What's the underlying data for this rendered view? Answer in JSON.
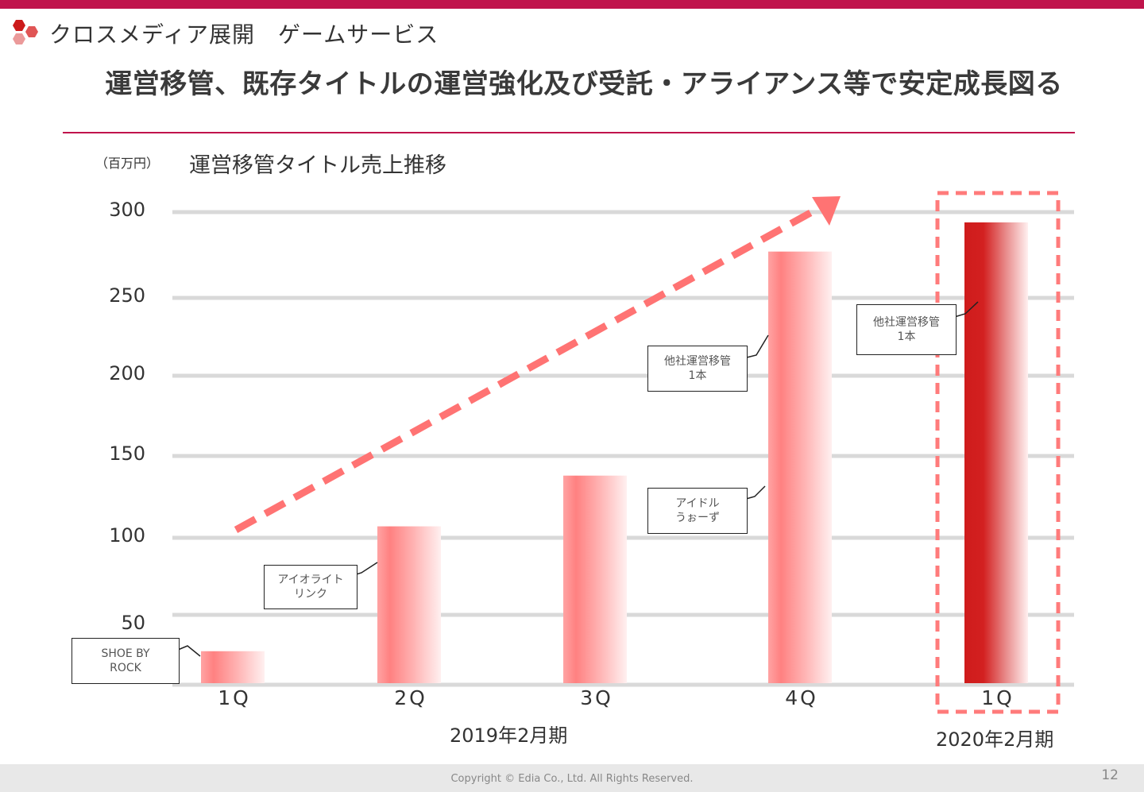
{
  "header": {
    "section_title": "クロスメディア展開　ゲームサービス",
    "headline": "運営移管、既存タイトルの運営強化及び受託・アライアンス等で安定成長図る",
    "brand_color": "#c0144c",
    "logo_icon": "hexagon-cluster-icon"
  },
  "chart_data": {
    "type": "bar",
    "title": "運営移管タイトル売上推移",
    "ylabel": "（百万円）",
    "xlabel": "",
    "categories": [
      "1Q",
      "2Q",
      "3Q",
      "4Q",
      "1Q"
    ],
    "category_labels": [
      "1Q",
      "2Q",
      "3Q",
      "4Q",
      "1Q"
    ],
    "periods": [
      {
        "label": "2019年2月期",
        "categories": [
          0,
          1,
          2,
          3
        ]
      },
      {
        "label": "2020年2月期",
        "categories": [
          4
        ]
      }
    ],
    "values": [
      24,
      107,
      138,
      277,
      294
    ],
    "yticks": [
      50,
      100,
      150,
      200,
      250,
      300
    ],
    "ylim": [
      0,
      300
    ],
    "grid": true,
    "bar_colors": [
      "#ff8080",
      "#ff8080",
      "#ff8080",
      "#ff8080",
      "#cc1a1a"
    ],
    "highlight": {
      "category_index": 4,
      "style": "dashed-box",
      "color": "#ff7b7b"
    },
    "trend_arrow": {
      "style": "dashed",
      "color": "#ff7373",
      "direction": "up-right"
    },
    "annotations": [
      {
        "category_index": 0,
        "lines": [
          "SHOE BY",
          "ROCK"
        ]
      },
      {
        "category_index": 1,
        "lines": [
          "アイオライト",
          "リンク"
        ]
      },
      {
        "category_index": 3,
        "lines": [
          "アイドル",
          "うぉーず"
        ]
      },
      {
        "category_index": 3,
        "lines": [
          "他社運営移管",
          "1本"
        ]
      },
      {
        "category_index": 4,
        "lines": [
          "他社運営移管",
          "1本"
        ]
      }
    ]
  },
  "footer": {
    "copyright": "Copyright © Edia Co., Ltd. All Rights Reserved.",
    "page_number": "12"
  }
}
